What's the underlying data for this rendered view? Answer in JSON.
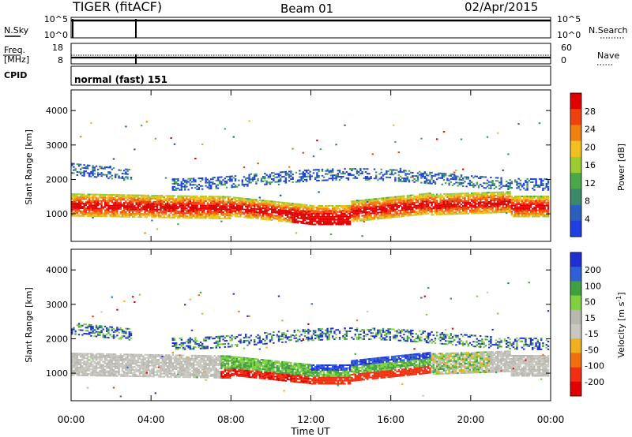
{
  "header": {
    "title": "TIGER (fitACF)",
    "beam": "Beam 01",
    "date": "02/Apr/2015"
  },
  "noise_panel": {
    "left_label": "N.Sky",
    "right_label": "N.Search",
    "left_ticks": [
      "10^5",
      "10^0"
    ],
    "right_ticks": [
      "10^5",
      "10^0"
    ]
  },
  "freq_panel": {
    "left_label_1": "Freq.",
    "left_label_2": "[MHz]",
    "right_label": "Nave",
    "left_ticks": [
      "18",
      "8"
    ],
    "right_ticks": [
      "60",
      "0"
    ]
  },
  "cpid_panel": {
    "label": "CPID",
    "text": "normal (fast) 151"
  },
  "colors": {
    "power": [
      "#1f3fe0",
      "#2a5fc0",
      "#3a8a6a",
      "#4aa84a",
      "#9ccc30",
      "#f0c020",
      "#f08010",
      "#f04010",
      "#e00000"
    ],
    "velocity": [
      "#2030d0",
      "#3060d8",
      "#40a040",
      "#7fd040",
      "#b8b8b0",
      "#c8c8c0",
      "#f0b020",
      "#f07010",
      "#f03010",
      "#e00000"
    ]
  },
  "chart_data": [
    {
      "type": "heatmap",
      "title": "",
      "xlabel": "",
      "ylabel": "Slant Range [km]",
      "x_ticks": [
        "00:00",
        "04:00",
        "08:00",
        "12:00",
        "16:00",
        "20:00",
        "00:00"
      ],
      "y_ticks": [
        "1000",
        "2000",
        "3000",
        "4000"
      ],
      "y_range": [
        200,
        4600
      ],
      "colorbar_label": "Power [dB]",
      "colorbar_ticks": [
        "4",
        "8",
        "12",
        "16",
        "20",
        "24",
        "28"
      ],
      "colorbar_range": [
        0,
        32
      ]
    },
    {
      "type": "heatmap",
      "title": "",
      "xlabel": "Time UT",
      "ylabel": "Slant Range [km]",
      "x_ticks": [
        "00:00",
        "04:00",
        "08:00",
        "12:00",
        "16:00",
        "20:00",
        "00:00"
      ],
      "y_ticks": [
        "1000",
        "2000",
        "3000",
        "4000"
      ],
      "y_range": [
        200,
        4600
      ],
      "colorbar_label": "Velocity [m s",
      "colorbar_label_sup": "-1",
      "colorbar_label_end": "]",
      "colorbar_ticks": [
        "200",
        "100",
        "50",
        "15",
        "-15",
        "-50",
        "-100",
        "-200"
      ]
    }
  ]
}
